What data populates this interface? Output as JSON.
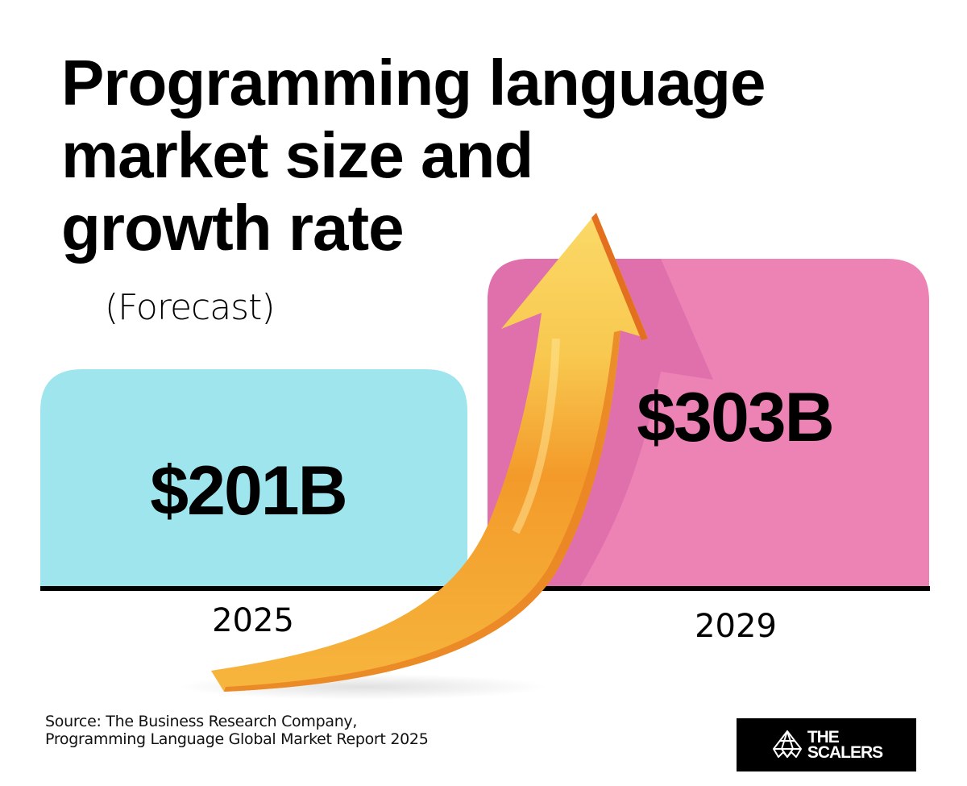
{
  "header": {
    "title_lines": [
      "Programming language",
      "market size and",
      "growth rate"
    ],
    "subtitle": "(Forecast)"
  },
  "chart_data": {
    "type": "bar",
    "title": "Programming language market size and growth rate",
    "subtitle": "(Forecast)",
    "categories": [
      "2025",
      "2029"
    ],
    "values": [
      201,
      303
    ],
    "value_labels": [
      "$201B",
      "$303B"
    ],
    "unit": "USD billions",
    "xlabel": "",
    "ylabel": "",
    "ylim": [
      0,
      303
    ],
    "grid": false,
    "colors": [
      "#9ee5ed",
      "#ed82b4"
    ],
    "accent_shadow": "#e070ac",
    "arrow_color": "#f7c04a"
  },
  "footer": {
    "source_lines": [
      "Source: The Business Research Company,",
      "Programming Language Global Market Report 2025"
    ],
    "logo_lines": [
      "THE",
      "SCALERS"
    ]
  }
}
